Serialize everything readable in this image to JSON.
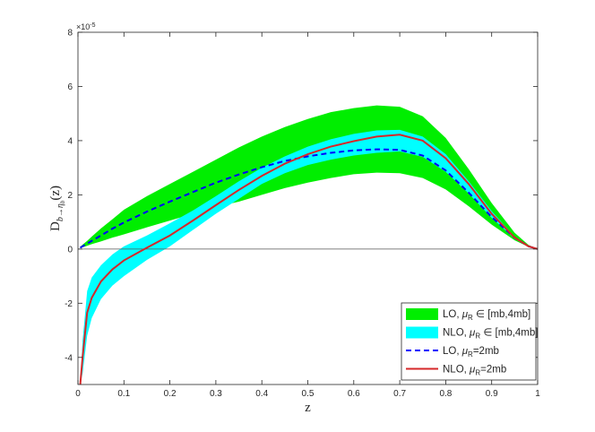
{
  "chart_data": {
    "type": "area",
    "xlabel": "z",
    "ylabel": {
      "base": "D",
      "sub": "b→η",
      "sub2": "b",
      "arg": "(z)"
    },
    "xlim": [
      0,
      1
    ],
    "ylim": [
      -5e-05,
      8e-05
    ],
    "y_exponent_label": "×10",
    "y_exponent_power": "-5",
    "x_ticks": [
      0,
      0.1,
      0.2,
      0.3,
      0.4,
      0.5,
      0.6,
      0.7,
      0.8,
      0.9,
      1
    ],
    "x_tick_labels": [
      "0",
      "0.1",
      "0.2",
      "0.3",
      "0.4",
      "0.5",
      "0.6",
      "0.7",
      "0.8",
      "0.9",
      "1"
    ],
    "y_ticks": [
      -4e-05,
      -2e-05,
      0,
      2e-05,
      4e-05,
      6e-05,
      8e-05
    ],
    "y_tick_labels": [
      "-4",
      "-2",
      "0",
      "2",
      "4",
      "6",
      "8"
    ],
    "grid": false,
    "legend_position": "bottom-right",
    "x": [
      0.005,
      0.01,
      0.02,
      0.03,
      0.05,
      0.075,
      0.1,
      0.15,
      0.2,
      0.25,
      0.3,
      0.35,
      0.4,
      0.45,
      0.5,
      0.55,
      0.6,
      0.65,
      0.7,
      0.75,
      0.8,
      0.85,
      0.9,
      0.95,
      0.98,
      1.0
    ],
    "series": [
      {
        "name": "LO, μ_R ∈ [mb,4mb]",
        "kind": "band",
        "color": "#00ee00",
        "lower": [
          3e-07,
          6e-07,
          1.2e-06,
          1.8e-06,
          2.8e-06,
          4.2e-06,
          5.4e-06,
          8e-06,
          1.05e-05,
          1.3e-05,
          1.55e-05,
          1.75e-05,
          2e-05,
          2.25e-05,
          2.45e-05,
          2.62e-05,
          2.76e-05,
          2.82e-05,
          2.8e-05,
          2.62e-05,
          2.2e-05,
          1.58e-05,
          9e-06,
          3.2e-06,
          8e-07,
          0
        ],
        "upper": [
          8e-07,
          1.6e-06,
          3e-06,
          4.6e-06,
          7.6e-06,
          1.1e-05,
          1.45e-05,
          1.95e-05,
          2.4e-05,
          2.85e-05,
          3.3e-05,
          3.75e-05,
          4.15e-05,
          4.5e-05,
          4.8e-05,
          5.05e-05,
          5.2e-05,
          5.3e-05,
          5.25e-05,
          4.9e-05,
          4.1e-05,
          2.95e-05,
          1.7e-05,
          6e-06,
          1.5e-06,
          0
        ]
      },
      {
        "name": "NLO, μ_R ∈ [mb,4mb]",
        "kind": "band",
        "color": "#00ffff",
        "lower": [
          -5e-05,
          -4.6e-05,
          -3.2e-05,
          -2.55e-05,
          -1.85e-05,
          -1.35e-05,
          -1e-05,
          -4e-06,
          1e-06,
          7e-06,
          1.3e-05,
          1.85e-05,
          2.4e-05,
          2.8e-05,
          3.1e-05,
          3.3e-05,
          3.45e-05,
          3.55e-05,
          3.6e-05,
          3.4e-05,
          2.85e-05,
          2.05e-05,
          1.15e-05,
          3.8e-06,
          8e-07,
          0
        ],
        "upper": [
          -5e-05,
          -3.4e-05,
          -1.55e-05,
          -1.05e-05,
          -6e-06,
          -2e-06,
          1e-06,
          5e-06,
          9.5e-06,
          1.42e-05,
          1.95e-05,
          2.5e-05,
          3e-05,
          3.42e-05,
          3.78e-05,
          4.05e-05,
          4.25e-05,
          4.38e-05,
          4.4e-05,
          4.15e-05,
          3.5e-05,
          2.5e-05,
          1.4e-05,
          4.5e-06,
          1e-06,
          0
        ]
      },
      {
        "name": "LO, μ_R=2mb",
        "kind": "line",
        "color": "#0000ff",
        "dash": true,
        "values": [
          5e-07,
          1e-06,
          2e-06,
          3e-06,
          5e-06,
          7.5e-06,
          9.8e-06,
          1.38e-05,
          1.75e-05,
          2.1e-05,
          2.45e-05,
          2.75e-05,
          3.02e-05,
          3.25e-05,
          3.42e-05,
          3.55e-05,
          3.64e-05,
          3.68e-05,
          3.66e-05,
          3.45e-05,
          2.9e-05,
          2.08e-05,
          1.18e-05,
          4.2e-06,
          1e-06,
          0
        ]
      },
      {
        "name": "NLO, μ_R=2mb",
        "kind": "line",
        "color": "#d62728",
        "dash": false,
        "values": [
          -5e-05,
          -4e-05,
          -2.35e-05,
          -1.8e-05,
          -1.2e-05,
          -7.5e-06,
          -4.2e-06,
          5e-07,
          5e-06,
          1.05e-05,
          1.62e-05,
          2.18e-05,
          2.7e-05,
          3.15e-05,
          3.5e-05,
          3.78e-05,
          3.98e-05,
          4.15e-05,
          4.22e-05,
          4e-05,
          3.35e-05,
          2.4e-05,
          1.3e-05,
          4.2e-06,
          1e-06,
          0
        ]
      }
    ]
  },
  "legend": {
    "items": [
      {
        "pre": "LO, ",
        "mu": "μ",
        "sub": "R",
        "post": " ∈ [mb,4mb]",
        "color": "#00ee00",
        "kind": "band"
      },
      {
        "pre": "NLO, ",
        "mu": "μ",
        "sub": "R",
        "post": " ∈ [mb,4mb]",
        "color": "#00ffff",
        "kind": "band"
      },
      {
        "pre": "LO, ",
        "mu": "μ",
        "sub": "R",
        "post": "=2mb",
        "color": "#0000ff",
        "kind": "dash"
      },
      {
        "pre": "NLO, ",
        "mu": "μ",
        "sub": "R",
        "post": "=2mb",
        "color": "#d62728",
        "kind": "line"
      }
    ]
  }
}
